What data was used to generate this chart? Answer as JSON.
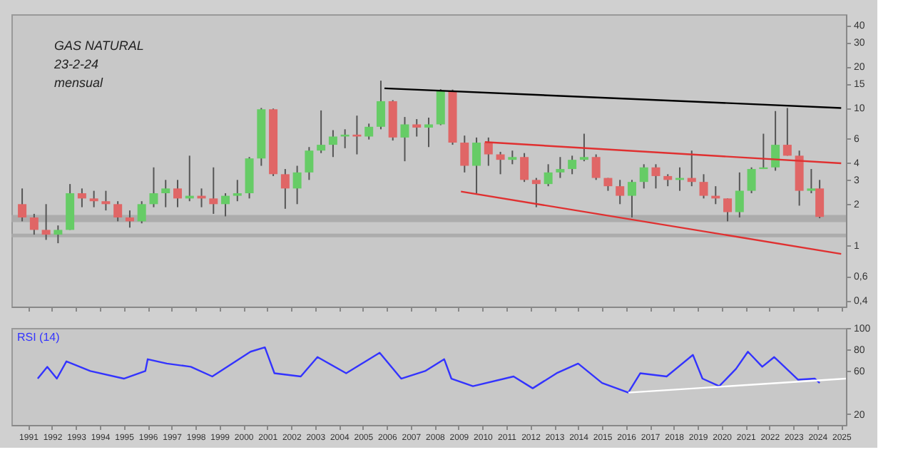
{
  "chart_data": [
    {
      "type": "candlestick",
      "annotations": [
        "GAS NATURAL",
        "23-2-24",
        "mensual"
      ],
      "x": [
        1990.75,
        1991.25,
        1991.75,
        1992.25,
        1992.75,
        1993.25,
        1993.75,
        1994.25,
        1994.75,
        1995.25,
        1995.75,
        1996.25,
        1996.75,
        1997.25,
        1997.75,
        1998.25,
        1998.75,
        1999.25,
        1999.75,
        2000.25,
        2000.75,
        2001.25,
        2001.75,
        2002.25,
        2002.75,
        2003.25,
        2003.75,
        2004.25,
        2004.75,
        2005.25,
        2005.75,
        2006.25,
        2006.75,
        2007.25,
        2007.75,
        2008.25,
        2008.75,
        2009.25,
        2009.75,
        2010.25,
        2010.75,
        2011.25,
        2011.75,
        2012.25,
        2012.75,
        2013.25,
        2013.75,
        2014.25,
        2014.75,
        2015.25,
        2015.75,
        2016.25,
        2016.75,
        2017.25,
        2017.75,
        2018.25,
        2018.75,
        2019.25,
        2019.75,
        2020.25,
        2020.75,
        2021.25,
        2021.75,
        2022.25,
        2022.75,
        2023.25,
        2023.75,
        2024.1
      ],
      "ohlc": [
        [
          2.0,
          2.6,
          1.5,
          1.6
        ],
        [
          1.6,
          1.7,
          1.2,
          1.3
        ],
        [
          1.3,
          2.0,
          1.1,
          1.2
        ],
        [
          1.2,
          1.4,
          1.04,
          1.3
        ],
        [
          1.3,
          2.8,
          1.3,
          2.4
        ],
        [
          2.4,
          2.6,
          1.9,
          2.2
        ],
        [
          2.2,
          2.5,
          1.9,
          2.1
        ],
        [
          2.1,
          2.5,
          1.8,
          2.0
        ],
        [
          2.0,
          2.1,
          1.5,
          1.6
        ],
        [
          1.6,
          1.8,
          1.35,
          1.5
        ],
        [
          1.5,
          2.1,
          1.45,
          2.0
        ],
        [
          2.0,
          3.7,
          1.9,
          2.4
        ],
        [
          2.4,
          3.0,
          1.9,
          2.6
        ],
        [
          2.6,
          3.0,
          1.9,
          2.2
        ],
        [
          2.2,
          4.5,
          2.1,
          2.3
        ],
        [
          2.3,
          2.6,
          1.9,
          2.2
        ],
        [
          2.2,
          3.7,
          1.7,
          2.0
        ],
        [
          2.0,
          2.4,
          1.63,
          2.3
        ],
        [
          2.3,
          3.0,
          2.1,
          2.4
        ],
        [
          2.4,
          4.4,
          2.2,
          4.3
        ],
        [
          4.3,
          10.0,
          3.8,
          9.8
        ],
        [
          9.8,
          9.9,
          3.2,
          3.3
        ],
        [
          3.3,
          3.6,
          1.85,
          2.6
        ],
        [
          2.6,
          3.8,
          2.0,
          3.4
        ],
        [
          3.4,
          5.2,
          3.0,
          4.9
        ],
        [
          4.9,
          9.6,
          4.7,
          5.4
        ],
        [
          5.4,
          6.9,
          4.4,
          6.2
        ],
        [
          6.2,
          7.0,
          5.1,
          6.4
        ],
        [
          6.4,
          8.8,
          4.6,
          6.2
        ],
        [
          6.2,
          7.7,
          5.9,
          7.3
        ],
        [
          7.3,
          15.8,
          7.0,
          11.2
        ],
        [
          11.2,
          11.4,
          5.8,
          6.1
        ],
        [
          6.1,
          8.6,
          4.1,
          7.6
        ],
        [
          7.6,
          8.3,
          6.2,
          7.2
        ],
        [
          7.2,
          8.5,
          5.2,
          7.6
        ],
        [
          7.6,
          13.7,
          7.5,
          13.4
        ],
        [
          13.4,
          13.6,
          5.4,
          5.6
        ],
        [
          5.6,
          6.3,
          3.4,
          3.8
        ],
        [
          3.8,
          6.1,
          2.4,
          5.6
        ],
        [
          5.6,
          6.1,
          3.8,
          4.6
        ],
        [
          4.6,
          4.8,
          3.3,
          4.2
        ],
        [
          4.2,
          4.9,
          3.9,
          4.4
        ],
        [
          4.4,
          4.7,
          2.9,
          3.0
        ],
        [
          3.0,
          3.1,
          1.9,
          2.8
        ],
        [
          2.8,
          3.9,
          2.7,
          3.4
        ],
        [
          3.4,
          4.4,
          3.1,
          3.6
        ],
        [
          3.6,
          4.5,
          3.3,
          4.2
        ],
        [
          4.2,
          6.5,
          4.1,
          4.4
        ],
        [
          4.4,
          4.6,
          3.0,
          3.1
        ],
        [
          3.1,
          3.1,
          2.5,
          2.7
        ],
        [
          2.7,
          3.0,
          2.0,
          2.3
        ],
        [
          2.3,
          3.0,
          1.6,
          2.9
        ],
        [
          2.9,
          3.9,
          2.6,
          3.7
        ],
        [
          3.7,
          3.9,
          2.6,
          3.2
        ],
        [
          3.2,
          3.3,
          2.7,
          3.0
        ],
        [
          3.0,
          3.7,
          2.5,
          3.1
        ],
        [
          3.1,
          4.9,
          2.7,
          2.9
        ],
        [
          2.9,
          3.3,
          2.2,
          2.3
        ],
        [
          2.3,
          2.7,
          2.0,
          2.2
        ],
        [
          2.2,
          2.2,
          1.5,
          1.75
        ],
        [
          1.75,
          3.4,
          1.6,
          2.5
        ],
        [
          2.5,
          3.7,
          2.4,
          3.6
        ],
        [
          3.6,
          6.5,
          3.6,
          3.7
        ],
        [
          3.7,
          9.5,
          3.5,
          5.4
        ],
        [
          5.4,
          10.0,
          4.5,
          4.5
        ],
        [
          4.5,
          4.9,
          1.95,
          2.5
        ],
        [
          2.5,
          3.6,
          2.4,
          2.6
        ],
        [
          2.6,
          3.0,
          1.58,
          1.615
        ]
      ],
      "colors": [
        "#e06666",
        "#e06666",
        "#e06666",
        "#66cc66",
        "#66cc66",
        "#e06666",
        "#e06666",
        "#e06666",
        "#e06666",
        "#e06666",
        "#66cc66",
        "#66cc66",
        "#66cc66",
        "#e06666",
        "#66cc66",
        "#e06666",
        "#e06666",
        "#66cc66",
        "#66cc66",
        "#66cc66",
        "#66cc66",
        "#e06666",
        "#e06666",
        "#66cc66",
        "#66cc66",
        "#66cc66",
        "#66cc66",
        "#66cc66",
        "#e06666",
        "#66cc66",
        "#66cc66",
        "#e06666",
        "#66cc66",
        "#e06666",
        "#66cc66",
        "#66cc66",
        "#e06666",
        "#e06666",
        "#66cc66",
        "#e06666",
        "#e06666",
        "#66cc66",
        "#e06666",
        "#e06666",
        "#66cc66",
        "#66cc66",
        "#66cc66",
        "#66cc66",
        "#e06666",
        "#e06666",
        "#e06666",
        "#66cc66",
        "#66cc66",
        "#e06666",
        "#e06666",
        "#66cc66",
        "#e06666",
        "#e06666",
        "#e06666",
        "#e06666",
        "#66cc66",
        "#66cc66",
        "#66cc66",
        "#66cc66",
        "#e06666",
        "#e06666",
        "#66cc66",
        "#e06666"
      ],
      "series": [
        {
          "type": "line",
          "color": "#000000",
          "x": [
            2005.9,
            2025.0
          ],
          "values": [
            13.9,
            10.0
          ]
        },
        {
          "type": "line",
          "color": "#e03030",
          "x": [
            2010.1,
            2025.0
          ],
          "values": [
            5.65,
            3.96
          ]
        },
        {
          "type": "line",
          "color": "#e03030",
          "x": [
            2009.1,
            2025.0
          ],
          "values": [
            2.47,
            0.87
          ]
        }
      ],
      "bands": [
        {
          "axis": "y",
          "from": 1.48,
          "to": 1.67,
          "color": "#a8a8a8"
        },
        {
          "axis": "y",
          "from": 1.15,
          "to": 1.22,
          "color": "#a8a8a8"
        }
      ],
      "log": true,
      "ylim": [
        0.36,
        48
      ],
      "yticks": [
        {
          "value": 0.4,
          "label": "0,4"
        },
        {
          "value": 0.6,
          "label": "0,6"
        },
        1,
        2,
        3,
        4,
        6,
        10,
        15,
        20,
        30,
        40
      ],
      "xlim": [
        1990.3,
        2025.2
      ],
      "xticks": [
        1991,
        1992,
        1993,
        1994,
        1995,
        1996,
        1997,
        1998,
        1999,
        2000,
        2001,
        2002,
        2003,
        2004,
        2005,
        2006,
        2007,
        2008,
        2009,
        2010,
        2011,
        2012,
        2013,
        2014,
        2015,
        2016,
        2017,
        2018,
        2019,
        2020,
        2021,
        2022,
        2023,
        2024,
        2025
      ],
      "tick_labels": "y",
      "grid": false
    },
    {
      "type": "line",
      "x": [
        1991.4,
        1991.8,
        1992.2,
        1992.6,
        1993.6,
        1995.0,
        1995.9,
        1996.0,
        1996.8,
        1997.8,
        1998.7,
        2000.3,
        2000.9,
        2001.3,
        2002.4,
        2003.1,
        2004.3,
        2005.7,
        2006.6,
        2007.6,
        2008.4,
        2008.7,
        2009.6,
        2011.3,
        2012.1,
        2013.1,
        2014.0,
        2015.0,
        2016.1,
        2016.6,
        2017.7,
        2018.8,
        2019.2,
        2019.9,
        2020.6,
        2021.1,
        2021.7,
        2022.2,
        2023.2,
        2023.9,
        2024.1
      ],
      "series": [
        {
          "name": "RSI (14)",
          "color": "#3333ff",
          "values": [
            53,
            64,
            53,
            69,
            60,
            53,
            60,
            71,
            67,
            64,
            55,
            78,
            82,
            58,
            55,
            73,
            58,
            77,
            53,
            60,
            71,
            53,
            46,
            55,
            44,
            58,
            67,
            49,
            40,
            58,
            55,
            75,
            53,
            46,
            62,
            78,
            64,
            73,
            52,
            53,
            49
          ]
        },
        {
          "type": "line",
          "color": "#ffffff",
          "x": [
            2016.1,
            2025.2
          ],
          "values": [
            40,
            53
          ]
        }
      ],
      "ylim": [
        10,
        100
      ],
      "yticks": [
        20,
        60,
        80,
        100
      ],
      "xlim": [
        1990.3,
        2025.2
      ],
      "xticks": [
        1991,
        1992,
        1993,
        1994,
        1995,
        1996,
        1997,
        1998,
        1999,
        2000,
        2001,
        2002,
        2003,
        2004,
        2005,
        2006,
        2007,
        2008,
        2009,
        2010,
        2011,
        2012,
        2013,
        2014,
        2015,
        2016,
        2017,
        2018,
        2019,
        2020,
        2021,
        2022,
        2023,
        2024,
        2025
      ],
      "grid": false
    }
  ]
}
